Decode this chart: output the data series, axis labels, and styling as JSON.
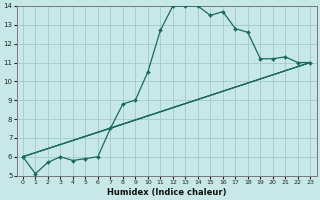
{
  "xlabel": "Humidex (Indice chaleur)",
  "bg_color": "#c8e8e8",
  "grid_color": "#a0cccc",
  "line_color": "#1a6b5a",
  "xlim": [
    -0.5,
    23.5
  ],
  "ylim": [
    5,
    14
  ],
  "xticks": [
    0,
    1,
    2,
    3,
    4,
    5,
    6,
    7,
    8,
    9,
    10,
    11,
    12,
    13,
    14,
    15,
    16,
    17,
    18,
    19,
    20,
    21,
    22,
    23
  ],
  "yticks": [
    5,
    6,
    7,
    8,
    9,
    10,
    11,
    12,
    13,
    14
  ],
  "lines": [
    {
      "x": [
        0,
        1,
        2,
        3,
        4,
        5,
        6,
        7,
        8,
        9,
        10,
        11,
        12,
        13,
        14,
        15,
        16,
        17,
        18,
        19,
        20,
        21,
        22,
        23
      ],
      "y": [
        6.0,
        5.1,
        5.7,
        6.0,
        5.8,
        5.9,
        6.0,
        7.5,
        8.8,
        9.0,
        10.5,
        12.7,
        14.0,
        14.0,
        14.0,
        13.5,
        13.7,
        12.8,
        12.6,
        11.2,
        11.2,
        11.3,
        11.0,
        11.0
      ],
      "marker": "D",
      "markersize": 2.0,
      "linewidth": 0.9
    },
    {
      "x": [
        0,
        23
      ],
      "y": [
        6.0,
        11.0
      ],
      "marker": null,
      "markersize": 0,
      "linewidth": 0.8
    },
    {
      "x": [
        0,
        23
      ],
      "y": [
        6.0,
        11.0
      ],
      "marker": null,
      "markersize": 0,
      "linewidth": 0.8
    },
    {
      "x": [
        0,
        7,
        23
      ],
      "y": [
        6.0,
        7.5,
        11.0
      ],
      "marker": null,
      "markersize": 0,
      "linewidth": 0.8
    }
  ]
}
